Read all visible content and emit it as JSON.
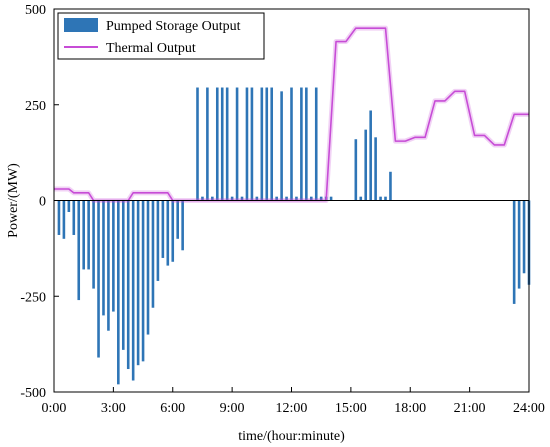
{
  "chart_data": {
    "type": "bar",
    "xlabel": "time/(hour:minute)",
    "ylabel": "Power/(MW)",
    "xlim": [
      0,
      24
    ],
    "ylim": [
      -500,
      500
    ],
    "x_ticks": [
      0,
      3,
      6,
      9,
      12,
      15,
      18,
      21,
      24
    ],
    "x_tick_labels": [
      "0:00",
      "3:00",
      "6:00",
      "9:00",
      "12:00",
      "15:00",
      "18:00",
      "21:00",
      "24:00"
    ],
    "y_ticks": [
      -500,
      -250,
      0,
      250,
      500
    ],
    "y_tick_labels": [
      "-500",
      "-250",
      "0",
      "250",
      "500"
    ],
    "legend_position": "top-left",
    "grid": false,
    "series": [
      {
        "name": "Pumped Storage Output",
        "type": "bar",
        "color": "#2e75b6",
        "x": [
          0.25,
          0.5,
          0.75,
          1.0,
          1.25,
          1.5,
          1.75,
          2.0,
          2.25,
          2.5,
          2.75,
          3.0,
          3.25,
          3.5,
          3.75,
          4.0,
          4.25,
          4.5,
          4.75,
          5.0,
          5.25,
          5.5,
          5.75,
          6.0,
          6.25,
          6.5,
          7.25,
          7.5,
          7.75,
          8.0,
          8.25,
          8.5,
          8.75,
          9.0,
          9.25,
          9.5,
          9.75,
          10.0,
          10.25,
          10.5,
          10.75,
          11.0,
          11.25,
          11.5,
          11.75,
          12.0,
          12.25,
          12.5,
          12.75,
          13.0,
          13.25,
          13.5,
          13.75,
          14.0,
          15.25,
          15.5,
          15.75,
          16.0,
          16.25,
          16.5,
          16.75,
          17.0,
          23.25,
          23.5,
          23.75,
          24.0
        ],
        "values": [
          -90,
          -100,
          -30,
          -90,
          -260,
          -180,
          -180,
          -230,
          -410,
          -300,
          -340,
          -290,
          -480,
          -390,
          -440,
          -470,
          -430,
          -420,
          -350,
          -280,
          -210,
          -150,
          -170,
          -160,
          -100,
          -130,
          295,
          10,
          295,
          10,
          295,
          295,
          295,
          10,
          295,
          10,
          295,
          295,
          10,
          295,
          295,
          295,
          10,
          285,
          10,
          295,
          10,
          295,
          295,
          10,
          295,
          10,
          10,
          10,
          160,
          10,
          185,
          235,
          165,
          10,
          10,
          75,
          -270,
          -230,
          -190,
          -220
        ]
      },
      {
        "name": "Thermal Output",
        "type": "line",
        "color": "#c74cd6",
        "x": [
          0.0,
          0.75,
          1.0,
          1.75,
          2.0,
          3.75,
          4.0,
          5.75,
          6.0,
          13.75,
          14.25,
          14.75,
          15.25,
          16.75,
          17.25,
          17.75,
          18.25,
          18.75,
          19.25,
          19.75,
          20.25,
          20.75,
          21.25,
          21.75,
          22.25,
          22.75,
          23.25,
          24.0
        ],
        "values": [
          30,
          30,
          20,
          20,
          0,
          0,
          20,
          20,
          0,
          0,
          415,
          415,
          450,
          450,
          155,
          155,
          165,
          165,
          260,
          260,
          285,
          285,
          170,
          170,
          145,
          145,
          225,
          225
        ]
      }
    ]
  }
}
